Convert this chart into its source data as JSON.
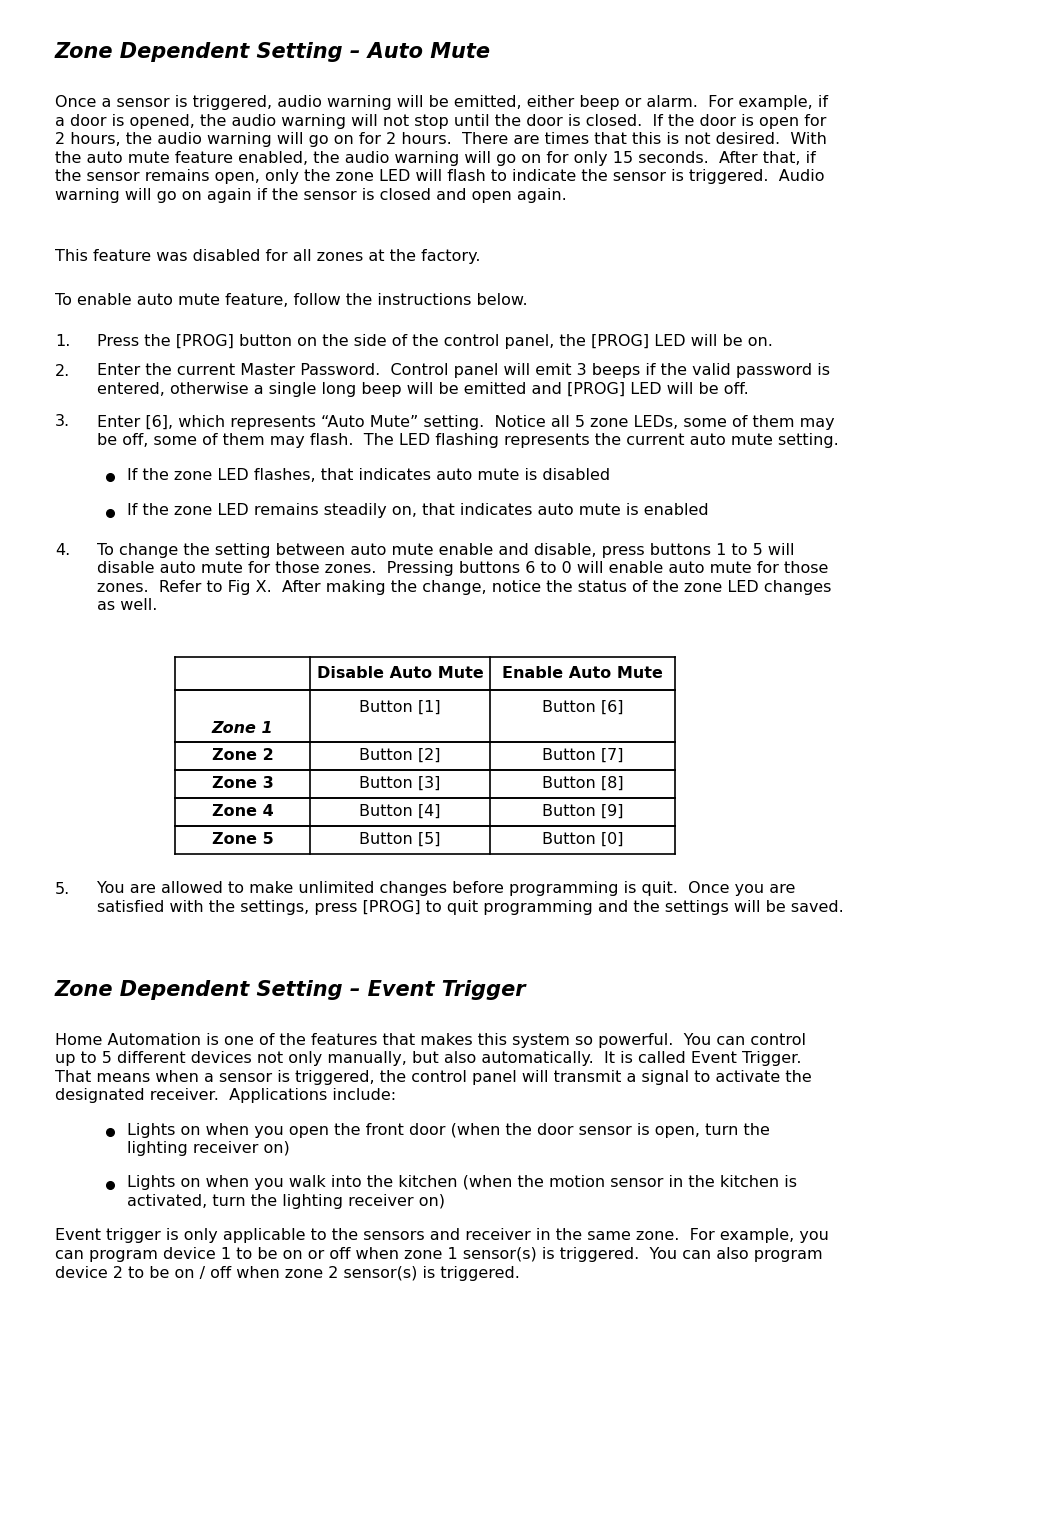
{
  "title1": "Zone Dependent Setting – Auto Mute",
  "title2": "Zone Dependent Setting – Event Trigger",
  "bg_color": "#ffffff",
  "text_color": "#000000",
  "para1": "Once a sensor is triggered, audio warning will be emitted, either beep or alarm.  For example, if a door is opened, the audio warning will not stop until the door is closed.  If the door is open for 2 hours, the audio warning will go on for 2 hours.  There are times that this is not desired.  With the auto mute feature enabled, the audio warning will go on for only 15 seconds.  After that, if the sensor remains open, only the zone LED will flash to indicate the sensor is triggered.  Audio warning will go on again if the sensor is closed and open again.",
  "para2": "This feature was disabled for all zones at the factory.",
  "para3": "To enable auto mute feature, follow the instructions below.",
  "list_items": [
    "Press the [PROG] button on the side of the control panel, the [PROG] LED will be on.",
    "Enter the current Master Password.  Control panel will emit 3 beeps if the valid password is\nentered, otherwise a single long beep will be emitted and [PROG] LED will be off.",
    "Enter [6], which represents “Auto Mute” setting.  Notice all 5 zone LEDs, some of them may\nbe off, some of them may flash.  The LED flashing represents the current auto mute setting.",
    "To change the setting between auto mute enable and disable, press buttons 1 to 5 will\ndisable auto mute for those zones.  Pressing buttons 6 to 0 will enable auto mute for those\nzones.  Refer to Fig X.  After making the change, notice the status of the zone LED changes\nas well."
  ],
  "bullet_items": [
    "If the zone LED flashes, that indicates auto mute is disabled",
    "If the zone LED remains steadily on, that indicates auto mute is enabled"
  ],
  "list_item5": "You are allowed to make unlimited changes before programming is quit.  Once you are\nsatisfied with the settings, press [PROG] to quit programming and the settings will be saved.",
  "table_header": [
    "",
    "Disable Auto Mute",
    "Enable Auto Mute"
  ],
  "table_rows": [
    [
      "Zone 1",
      "Button [1]",
      "Button [6]"
    ],
    [
      "Zone 2",
      "Button [2]",
      "Button [7]"
    ],
    [
      "Zone 3",
      "Button [3]",
      "Button [8]"
    ],
    [
      "Zone 4",
      "Button [4]",
      "Button [9]"
    ],
    [
      "Zone 5",
      "Button [5]",
      "Button [0]"
    ]
  ],
  "para_et1_lines": [
    "Home Automation is one of the features that makes this system so powerful.  You can control",
    "up to 5 different devices not only manually, but also automatically.  It is called Event Trigger.",
    "That means when a sensor is triggered, the control panel will transmit a signal to activate the",
    "designated receiver.  Applications include:"
  ],
  "bullet_et": [
    "Lights on when you open the front door (when the door sensor is open, turn the\nlighting receiver on)",
    "Lights on when you walk into the kitchen (when the motion sensor in the kitchen is\nactivated, turn the lighting receiver on)"
  ],
  "para_et2_lines": [
    "Event trigger is only applicable to the sensors and receiver in the same zone.  For example, you",
    "can program device 1 to be on or off when zone 1 sensor(s) is triggered.  You can also program",
    "device 2 to be on / off when zone 2 sensor(s) is triggered."
  ]
}
